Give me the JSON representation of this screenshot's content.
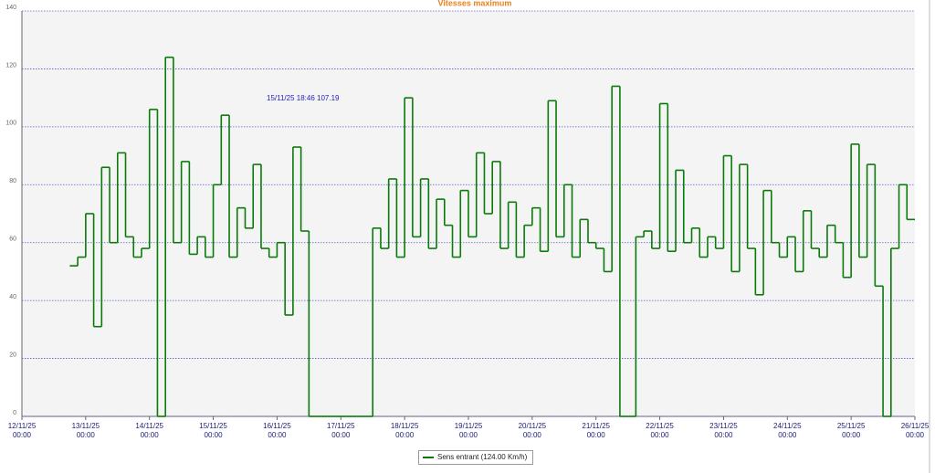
{
  "chart_data": {
    "type": "line",
    "step": true,
    "title": "Vitesses maximum",
    "annotation": "15/11/25 18:46 107.19",
    "xlim": [
      "12/11/25 00:00",
      "26/11/25 00:00"
    ],
    "xticks": [
      "12/11/25 00:00",
      "13/11/25 00:00",
      "14/11/25 00:00",
      "15/11/25 00:00",
      "16/11/25 00:00",
      "17/11/25 00:00",
      "18/11/25 00:00",
      "19/11/25 00:00",
      "20/11/25 00:00",
      "21/11/25 00:00",
      "22/11/25 00:00",
      "23/11/25 00:00",
      "24/11/25 00:00",
      "25/11/25 00:00",
      "26/11/25 00:00"
    ],
    "ylim": [
      0,
      140
    ],
    "yticks": [
      0,
      20,
      40,
      60,
      80,
      100,
      120,
      140
    ],
    "grid": true,
    "x": [
      "12/11/25 18:00",
      "12/11/25 21:00",
      "13/11/25 00:00",
      "13/11/25 03:00",
      "13/11/25 06:00",
      "13/11/25 09:00",
      "13/11/25 12:00",
      "13/11/25 15:00",
      "13/11/25 18:00",
      "13/11/25 21:00",
      "14/11/25 00:00",
      "14/11/25 03:00",
      "14/11/25 06:00",
      "14/11/25 09:00",
      "14/11/25 12:00",
      "14/11/25 15:00",
      "14/11/25 18:00",
      "14/11/25 21:00",
      "15/11/25 00:00",
      "15/11/25 03:00",
      "15/11/25 06:00",
      "15/11/25 09:00",
      "15/11/25 12:00",
      "15/11/25 15:00",
      "15/11/25 18:00",
      "15/11/25 21:00",
      "16/11/25 00:00",
      "16/11/25 03:00",
      "16/11/25 06:00",
      "16/11/25 09:00",
      "16/11/25 12:00",
      "16/11/25 15:00",
      "16/11/25 18:00",
      "16/11/25 21:00",
      "17/11/25 00:00",
      "17/11/25 03:00",
      "17/11/25 06:00",
      "17/11/25 09:00",
      "17/11/25 12:00",
      "17/11/25 15:00",
      "17/11/25 18:00",
      "17/11/25 21:00",
      "18/11/25 00:00",
      "18/11/25 03:00",
      "18/11/25 06:00",
      "18/11/25 09:00",
      "18/11/25 12:00",
      "18/11/25 15:00",
      "18/11/25 18:00",
      "18/11/25 21:00",
      "19/11/25 00:00",
      "19/11/25 03:00",
      "19/11/25 06:00",
      "19/11/25 09:00",
      "19/11/25 12:00",
      "19/11/25 15:00",
      "19/11/25 18:00",
      "19/11/25 21:00",
      "20/11/25 00:00",
      "20/11/25 03:00",
      "20/11/25 06:00",
      "20/11/25 09:00",
      "20/11/25 12:00",
      "20/11/25 15:00",
      "20/11/25 18:00",
      "20/11/25 21:00",
      "21/11/25 00:00",
      "21/11/25 03:00",
      "21/11/25 06:00",
      "21/11/25 09:00",
      "21/11/25 12:00",
      "21/11/25 15:00",
      "21/11/25 18:00",
      "21/11/25 21:00",
      "22/11/25 00:00",
      "22/11/25 03:00",
      "22/11/25 06:00",
      "22/11/25 09:00",
      "22/11/25 12:00",
      "22/11/25 15:00",
      "22/11/25 18:00",
      "22/11/25 21:00",
      "23/11/25 00:00",
      "23/11/25 03:00",
      "23/11/25 06:00",
      "23/11/25 09:00",
      "23/11/25 12:00",
      "23/11/25 15:00",
      "23/11/25 18:00",
      "23/11/25 21:00",
      "24/11/25 00:00",
      "24/11/25 03:00",
      "24/11/25 06:00",
      "24/11/25 09:00",
      "24/11/25 12:00",
      "24/11/25 15:00",
      "24/11/25 18:00",
      "24/11/25 21:00",
      "25/11/25 00:00",
      "25/11/25 03:00",
      "25/11/25 06:00",
      "25/11/25 09:00",
      "25/11/25 12:00",
      "25/11/25 15:00",
      "25/11/25 18:00",
      "25/11/25 21:00"
    ],
    "series": [
      {
        "name": "Sens entrant (124.00 Km/h)",
        "color": "#0a7a0a",
        "values": [
          52,
          55,
          70,
          31,
          86,
          60,
          91,
          62,
          55,
          58,
          106,
          0,
          124,
          60,
          88,
          56,
          62,
          55,
          80,
          104,
          55,
          72,
          65,
          87,
          58,
          55,
          60,
          35,
          93,
          64,
          0,
          0,
          0,
          0,
          0,
          0,
          0,
          0,
          65,
          58,
          82,
          55,
          110,
          62,
          82,
          58,
          75,
          66,
          55,
          78,
          62,
          91,
          70,
          88,
          58,
          74,
          55,
          66,
          72,
          57,
          109,
          62,
          80,
          55,
          68,
          60,
          58,
          50,
          114,
          0,
          0,
          62,
          64,
          58,
          108,
          57,
          85,
          60,
          65,
          55,
          62,
          58,
          90,
          50,
          87,
          58,
          42,
          78,
          60,
          55,
          62,
          50,
          71,
          58,
          55,
          66,
          60,
          48,
          94,
          55,
          87,
          45,
          0,
          58,
          80,
          68
        ]
      }
    ]
  }
}
